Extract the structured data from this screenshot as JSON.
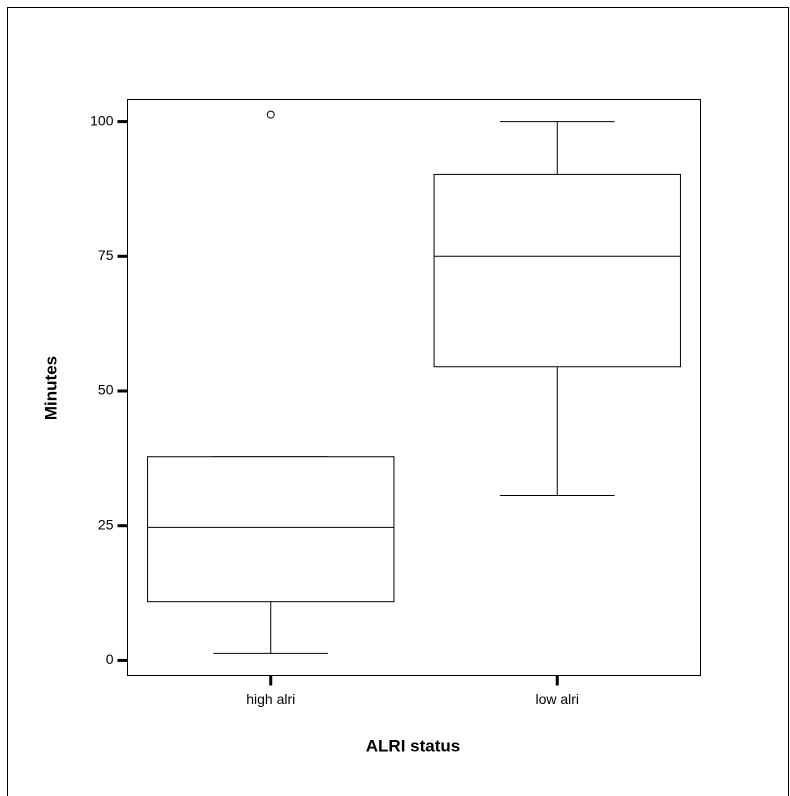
{
  "chart_data": {
    "type": "box",
    "x_label": "ALRI status",
    "y_label": "Minutes",
    "categories": [
      "high alri",
      "low alri"
    ],
    "boxes": [
      {
        "whislo": 1.3,
        "q1": 10.9,
        "med": 24.7,
        "q3": 37.8,
        "whishi": 37.8,
        "fliers": [
          101.3
        ]
      },
      {
        "whislo": 30.6,
        "q1": 54.5,
        "med": 75,
        "q3": 90.2,
        "whishi": 100,
        "fliers": []
      }
    ],
    "color": "#ffffff",
    "ylim": [
      -2.8,
      104.1
    ],
    "yticks": [
      0,
      25,
      50,
      75,
      100
    ]
  }
}
